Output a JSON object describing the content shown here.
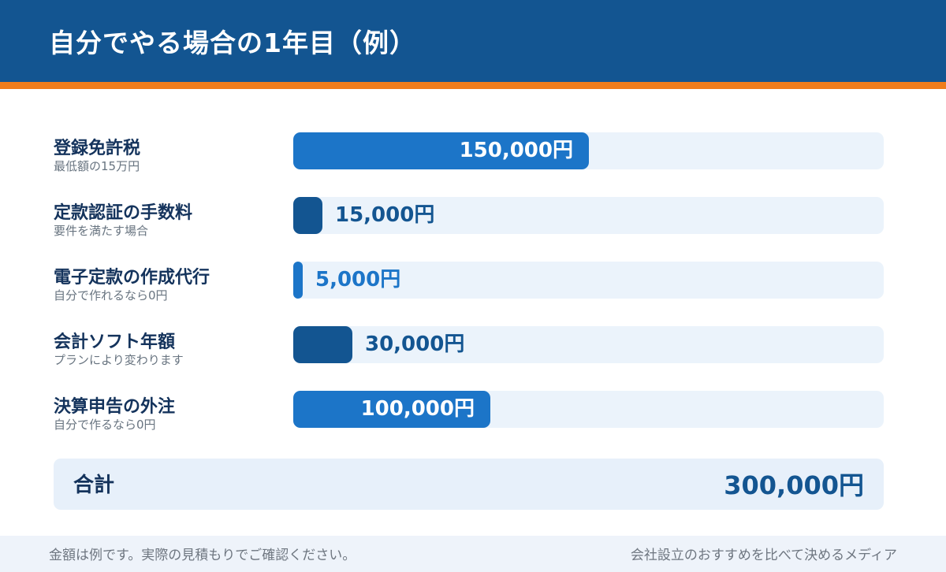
{
  "header": {
    "title": "自分でやる場合の1年目（例）"
  },
  "chart_data": {
    "type": "bar",
    "orientation": "horizontal",
    "unit": "円",
    "xlim": [
      0,
      300000
    ],
    "categories": [
      "登録免許税",
      "定款認証の手数料",
      "電子定款の作成代行",
      "会計ソフト年額",
      "決算申告の外注"
    ],
    "sublabels": [
      "最低額の15万円",
      "要件を満たす場合",
      "自分で作れるなら0円",
      "プランにより変わります",
      "自分で作るなら0円"
    ],
    "values": [
      150000,
      15000,
      5000,
      30000,
      100000
    ],
    "value_labels": [
      "150,000円",
      "15,000円",
      "5,000円",
      "30,000円",
      "100,000円"
    ],
    "bar_colors": [
      "#1c75c8",
      "#135591",
      "#1c75c8",
      "#135591",
      "#1c75c8"
    ],
    "grid": false
  },
  "total": {
    "label": "合計",
    "value": "300,000円"
  },
  "footer": {
    "note": "金額は例です。実際の見積もりでご確認ください。",
    "brand": "会社設立のおすすめを比べて決めるメディア"
  },
  "colors": {
    "header_bg": "#135591",
    "accent_stripe": "#f07d1c",
    "track_bg": "#ebf3fb",
    "total_bg": "#e7f0fa"
  }
}
